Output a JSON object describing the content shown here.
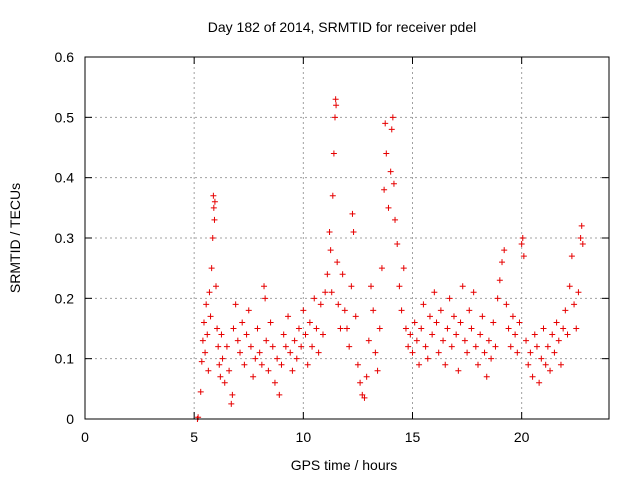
{
  "chart_data": {
    "type": "scatter",
    "title": "Day 182 of 2014, SRMTID for receiver pdel",
    "xlabel": "GPS time / hours",
    "ylabel": "SRMTID / TECUs",
    "xlim": [
      0,
      24
    ],
    "ylim": [
      0,
      0.6
    ],
    "xticks": [
      0,
      5,
      10,
      15,
      20
    ],
    "xtick_labels": [
      "0",
      "5",
      "10",
      "15",
      "20"
    ],
    "yticks": [
      0,
      0.1,
      0.2,
      0.3,
      0.4,
      0.5,
      0.6
    ],
    "ytick_labels": [
      "0",
      "0.1",
      "0.2",
      "0.3",
      "0.4",
      "0.5",
      "0.6"
    ],
    "grid": true,
    "marker": "+",
    "marker_color": "#e60000",
    "series": [
      {
        "name": "SRMTID",
        "points": [
          [
            5.15,
            0.0
          ],
          [
            5.18,
            0.003
          ],
          [
            5.3,
            0.045
          ],
          [
            5.35,
            0.095
          ],
          [
            5.4,
            0.13
          ],
          [
            5.45,
            0.16
          ],
          [
            5.5,
            0.11
          ],
          [
            5.55,
            0.19
          ],
          [
            5.6,
            0.14
          ],
          [
            5.65,
            0.08
          ],
          [
            5.7,
            0.21
          ],
          [
            5.75,
            0.17
          ],
          [
            5.8,
            0.25
          ],
          [
            5.85,
            0.3
          ],
          [
            5.88,
            0.37
          ],
          [
            5.9,
            0.35
          ],
          [
            5.93,
            0.33
          ],
          [
            5.95,
            0.36
          ],
          [
            6.0,
            0.22
          ],
          [
            6.05,
            0.15
          ],
          [
            6.1,
            0.12
          ],
          [
            6.15,
            0.09
          ],
          [
            6.2,
            0.07
          ],
          [
            6.25,
            0.14
          ],
          [
            6.3,
            0.1
          ],
          [
            6.4,
            0.06
          ],
          [
            6.5,
            0.12
          ],
          [
            6.6,
            0.08
          ],
          [
            6.7,
            0.025
          ],
          [
            6.75,
            0.04
          ],
          [
            6.8,
            0.15
          ],
          [
            6.9,
            0.19
          ],
          [
            7.0,
            0.13
          ],
          [
            7.1,
            0.11
          ],
          [
            7.2,
            0.16
          ],
          [
            7.3,
            0.09
          ],
          [
            7.4,
            0.14
          ],
          [
            7.5,
            0.18
          ],
          [
            7.6,
            0.12
          ],
          [
            7.7,
            0.07
          ],
          [
            7.8,
            0.1
          ],
          [
            7.9,
            0.15
          ],
          [
            8.0,
            0.11
          ],
          [
            8.1,
            0.09
          ],
          [
            8.2,
            0.22
          ],
          [
            8.25,
            0.2
          ],
          [
            8.3,
            0.13
          ],
          [
            8.4,
            0.08
          ],
          [
            8.5,
            0.16
          ],
          [
            8.6,
            0.12
          ],
          [
            8.7,
            0.06
          ],
          [
            8.8,
            0.1
          ],
          [
            8.9,
            0.04
          ],
          [
            9.0,
            0.09
          ],
          [
            9.1,
            0.14
          ],
          [
            9.2,
            0.12
          ],
          [
            9.3,
            0.17
          ],
          [
            9.4,
            0.11
          ],
          [
            9.5,
            0.08
          ],
          [
            9.6,
            0.13
          ],
          [
            9.7,
            0.1
          ],
          [
            9.8,
            0.15
          ],
          [
            9.9,
            0.12
          ],
          [
            10.0,
            0.18
          ],
          [
            10.1,
            0.14
          ],
          [
            10.2,
            0.09
          ],
          [
            10.3,
            0.16
          ],
          [
            10.4,
            0.12
          ],
          [
            10.5,
            0.2
          ],
          [
            10.6,
            0.15
          ],
          [
            10.7,
            0.11
          ],
          [
            10.8,
            0.19
          ],
          [
            10.9,
            0.14
          ],
          [
            11.0,
            0.21
          ],
          [
            11.1,
            0.24
          ],
          [
            11.2,
            0.31
          ],
          [
            11.25,
            0.28
          ],
          [
            11.3,
            0.21
          ],
          [
            11.35,
            0.37
          ],
          [
            11.4,
            0.44
          ],
          [
            11.45,
            0.5
          ],
          [
            11.48,
            0.53
          ],
          [
            11.5,
            0.52
          ],
          [
            11.55,
            0.26
          ],
          [
            11.6,
            0.19
          ],
          [
            11.7,
            0.15
          ],
          [
            11.8,
            0.24
          ],
          [
            11.9,
            0.18
          ],
          [
            12.0,
            0.15
          ],
          [
            12.1,
            0.12
          ],
          [
            12.2,
            0.22
          ],
          [
            12.25,
            0.34
          ],
          [
            12.3,
            0.31
          ],
          [
            12.4,
            0.17
          ],
          [
            12.5,
            0.09
          ],
          [
            12.6,
            0.06
          ],
          [
            12.7,
            0.04
          ],
          [
            12.8,
            0.035
          ],
          [
            12.9,
            0.07
          ],
          [
            13.0,
            0.13
          ],
          [
            13.1,
            0.22
          ],
          [
            13.2,
            0.18
          ],
          [
            13.3,
            0.11
          ],
          [
            13.4,
            0.08
          ],
          [
            13.5,
            0.15
          ],
          [
            13.6,
            0.25
          ],
          [
            13.7,
            0.38
          ],
          [
            13.75,
            0.49
          ],
          [
            13.8,
            0.44
          ],
          [
            13.9,
            0.35
          ],
          [
            14.0,
            0.41
          ],
          [
            14.05,
            0.48
          ],
          [
            14.1,
            0.5
          ],
          [
            14.15,
            0.39
          ],
          [
            14.2,
            0.33
          ],
          [
            14.3,
            0.29
          ],
          [
            14.4,
            0.22
          ],
          [
            14.5,
            0.18
          ],
          [
            14.6,
            0.25
          ],
          [
            14.7,
            0.15
          ],
          [
            14.8,
            0.12
          ],
          [
            14.9,
            0.14
          ],
          [
            15.0,
            0.11
          ],
          [
            15.1,
            0.16
          ],
          [
            15.2,
            0.13
          ],
          [
            15.3,
            0.09
          ],
          [
            15.4,
            0.15
          ],
          [
            15.5,
            0.19
          ],
          [
            15.6,
            0.12
          ],
          [
            15.7,
            0.1
          ],
          [
            15.8,
            0.17
          ],
          [
            15.9,
            0.14
          ],
          [
            16.0,
            0.21
          ],
          [
            16.1,
            0.16
          ],
          [
            16.2,
            0.11
          ],
          [
            16.3,
            0.18
          ],
          [
            16.4,
            0.13
          ],
          [
            16.5,
            0.09
          ],
          [
            16.6,
            0.15
          ],
          [
            16.7,
            0.2
          ],
          [
            16.8,
            0.12
          ],
          [
            16.9,
            0.17
          ],
          [
            17.0,
            0.14
          ],
          [
            17.1,
            0.08
          ],
          [
            17.2,
            0.16
          ],
          [
            17.3,
            0.22
          ],
          [
            17.4,
            0.13
          ],
          [
            17.5,
            0.11
          ],
          [
            17.6,
            0.18
          ],
          [
            17.7,
            0.15
          ],
          [
            17.8,
            0.21
          ],
          [
            17.9,
            0.12
          ],
          [
            18.0,
            0.09
          ],
          [
            18.1,
            0.14
          ],
          [
            18.2,
            0.17
          ],
          [
            18.3,
            0.11
          ],
          [
            18.4,
            0.07
          ],
          [
            18.5,
            0.13
          ],
          [
            18.6,
            0.1
          ],
          [
            18.7,
            0.16
          ],
          [
            18.8,
            0.12
          ],
          [
            18.9,
            0.2
          ],
          [
            19.0,
            0.23
          ],
          [
            19.1,
            0.26
          ],
          [
            19.2,
            0.28
          ],
          [
            19.3,
            0.19
          ],
          [
            19.4,
            0.15
          ],
          [
            19.5,
            0.12
          ],
          [
            19.6,
            0.17
          ],
          [
            19.7,
            0.14
          ],
          [
            19.8,
            0.11
          ],
          [
            19.9,
            0.16
          ],
          [
            20.0,
            0.29
          ],
          [
            20.05,
            0.3
          ],
          [
            20.1,
            0.27
          ],
          [
            20.2,
            0.13
          ],
          [
            20.3,
            0.09
          ],
          [
            20.4,
            0.11
          ],
          [
            20.5,
            0.07
          ],
          [
            20.6,
            0.14
          ],
          [
            20.7,
            0.12
          ],
          [
            20.8,
            0.06
          ],
          [
            20.9,
            0.1
          ],
          [
            21.0,
            0.15
          ],
          [
            21.1,
            0.09
          ],
          [
            21.2,
            0.12
          ],
          [
            21.3,
            0.08
          ],
          [
            21.4,
            0.14
          ],
          [
            21.5,
            0.11
          ],
          [
            21.6,
            0.16
          ],
          [
            21.7,
            0.13
          ],
          [
            21.8,
            0.09
          ],
          [
            21.9,
            0.15
          ],
          [
            22.0,
            0.18
          ],
          [
            22.1,
            0.14
          ],
          [
            22.2,
            0.22
          ],
          [
            22.3,
            0.27
          ],
          [
            22.4,
            0.19
          ],
          [
            22.5,
            0.15
          ],
          [
            22.6,
            0.21
          ],
          [
            22.7,
            0.3
          ],
          [
            22.75,
            0.32
          ],
          [
            22.8,
            0.29
          ]
        ]
      }
    ]
  }
}
